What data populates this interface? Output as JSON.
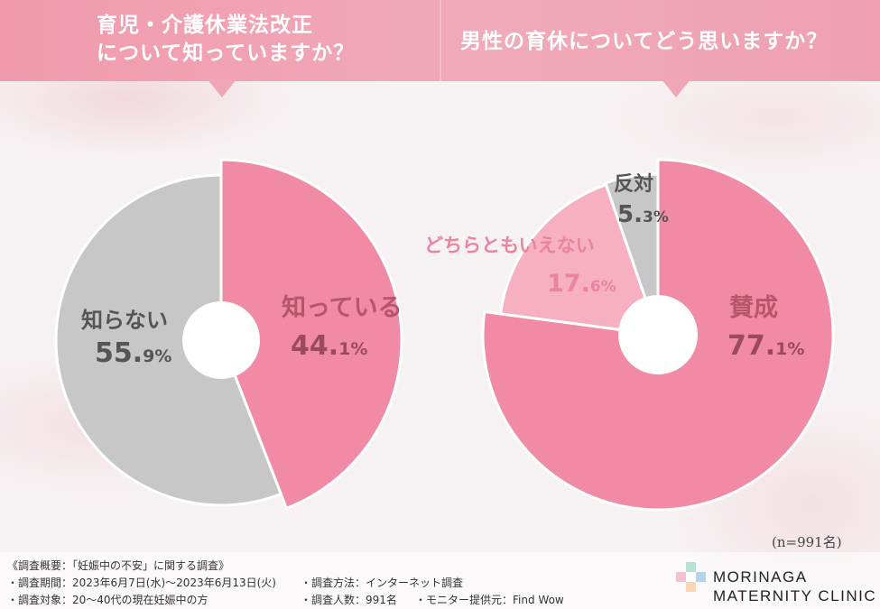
{
  "header": {
    "q1_line1": "育児・介護休業法改正",
    "q1_line2": "について知っていますか？",
    "q2": "男性の育休についてどう思いますか？"
  },
  "chart_data": [
    {
      "type": "pie",
      "title": "育児・介護休業法改正について知っていますか？",
      "slices": [
        {
          "label": "知っている",
          "value": 44.1,
          "color": "#f08aa5"
        },
        {
          "label": "知らない",
          "value": 55.9,
          "color": "#c7c7c7"
        }
      ],
      "value_suffix": "%",
      "donut_hole": true
    },
    {
      "type": "pie",
      "title": "男性の育休についてどう思いますか？",
      "slices": [
        {
          "label": "賛成",
          "value": 77.1,
          "color": "#f08aa5"
        },
        {
          "label": "どちらともいえない",
          "value": 17.6,
          "color": "#f6b0c2"
        },
        {
          "label": "反対",
          "value": 5.3,
          "color": "#c7c7c7"
        }
      ],
      "value_suffix": "%",
      "donut_hole": true
    }
  ],
  "labels": {
    "c1_a_label": "知っている",
    "c1_a_int": "44.",
    "c1_a_dec": "1",
    "c1_a_pct": "%",
    "c1_b_label": "知らない",
    "c1_b_int": "55.",
    "c1_b_dec": "9",
    "c1_b_pct": "%",
    "c2_a_label": "賛成",
    "c2_a_int": "77.",
    "c2_a_dec": "1",
    "c2_a_pct": "%",
    "c2_b_label": "どちらともいえない",
    "c2_b_int": "17.",
    "c2_b_dec": "6",
    "c2_b_pct": "%",
    "c2_c_label": "反対",
    "c2_c_int": "5.",
    "c2_c_dec": "3",
    "c2_c_pct": "%"
  },
  "sample_size": "(n=991名)",
  "footer": {
    "overview": "《調査概要：「妊娠中の不安」に関する調査》",
    "period": "・調査期間：2023年6月7日(水)〜2023年6月13日(火)",
    "target": "・調査対象：20〜40代の現在妊娠中の方",
    "method": "・調査方法：インターネット調査",
    "count": "・調査人数：991名",
    "provider": "・モニター提供元：Find Wow"
  },
  "logo": {
    "line1": "MORINAGA",
    "line2": "MATERNITY CLINIC",
    "colors": [
      "#5cc0a8",
      "#e9749a",
      "#5b9bd5",
      "#f2a25c"
    ]
  }
}
